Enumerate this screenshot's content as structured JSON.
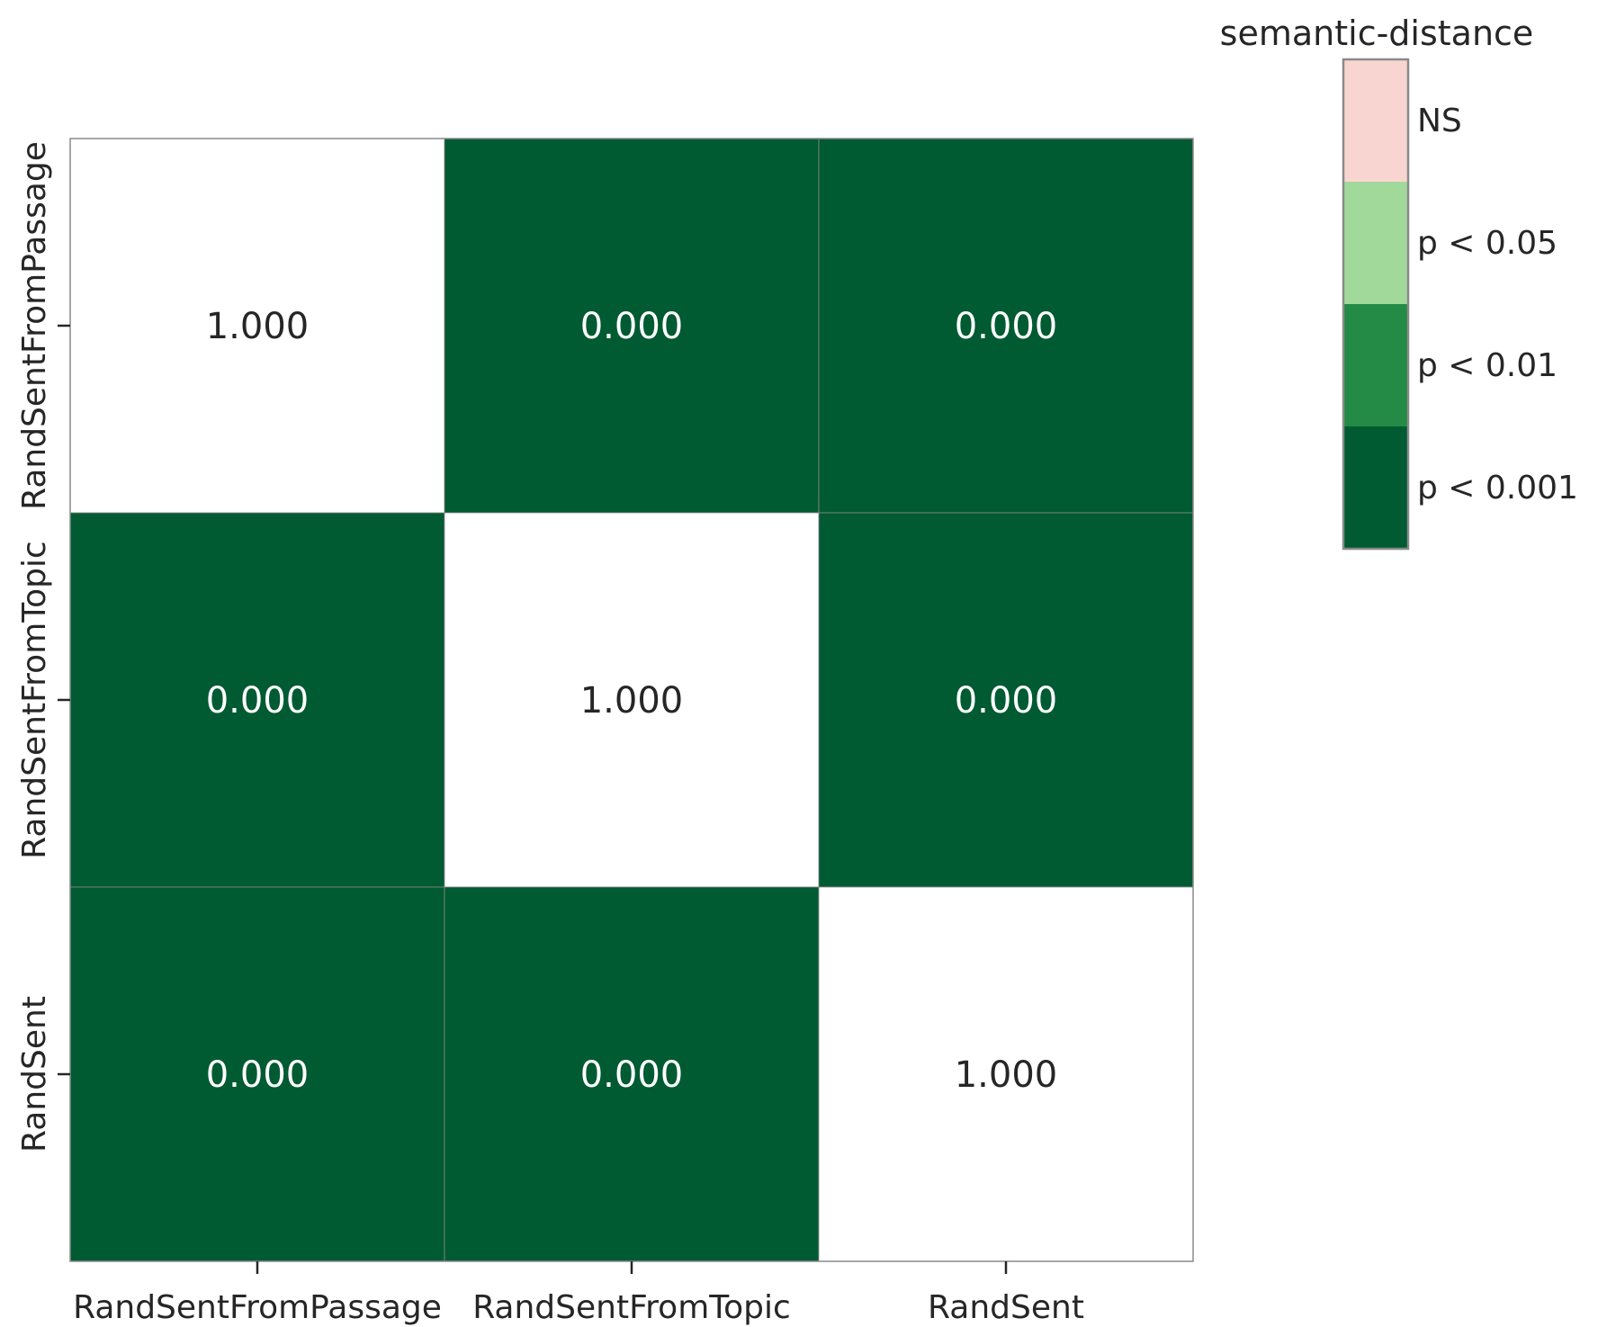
{
  "chart_data": {
    "type": "heatmap",
    "title": "",
    "xlabel": "",
    "ylabel": "",
    "x_categories": [
      "RandSentFromPassage",
      "RandSentFromTopic",
      "RandSent"
    ],
    "y_categories": [
      "RandSentFromPassage",
      "RandSentFromTopic",
      "RandSent"
    ],
    "values": [
      [
        1.0,
        0.0,
        0.0
      ],
      [
        0.0,
        1.0,
        0.0
      ],
      [
        0.0,
        0.0,
        1.0
      ]
    ],
    "cell_labels": [
      [
        "1.000",
        "0.000",
        "0.000"
      ],
      [
        "0.000",
        "1.000",
        "0.000"
      ],
      [
        "0.000",
        "0.000",
        "1.000"
      ]
    ],
    "diagonal_color": "#ffffff",
    "grid": false,
    "legend": {
      "title": "semantic-distance",
      "placement": "top-right",
      "entries": [
        {
          "label": "NS",
          "color": "#f8d5d0"
        },
        {
          "label": "p < 0.05",
          "color": "#a1d99b"
        },
        {
          "label": "p < 0.01",
          "color": "#238b45"
        },
        {
          "label": "p < 0.001",
          "color": "#005a32"
        }
      ]
    }
  }
}
